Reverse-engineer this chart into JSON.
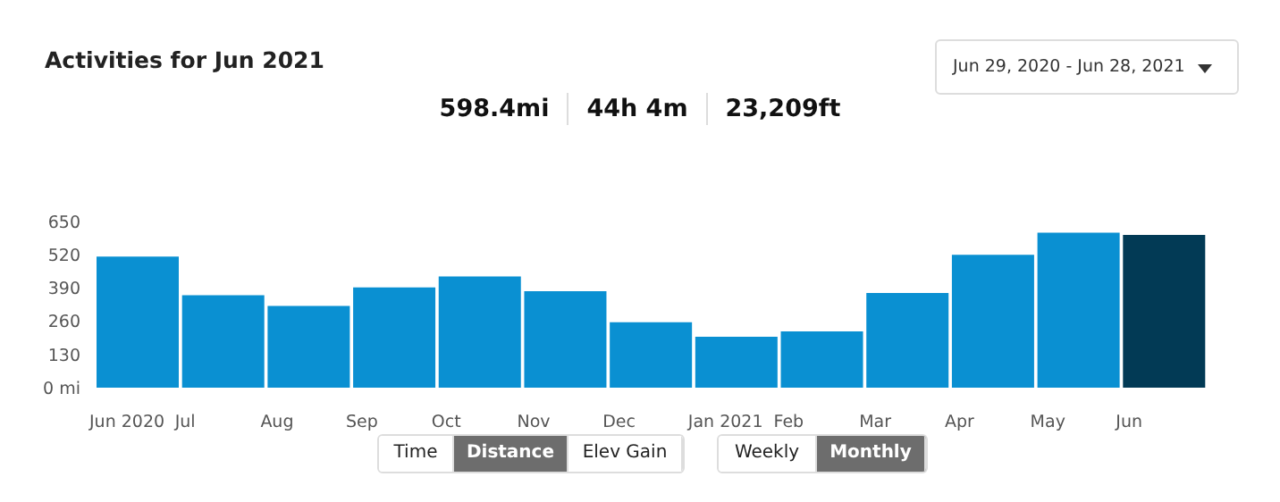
{
  "chart_data": {
    "type": "bar",
    "title": "Activities for Jun 2021",
    "categories": [
      "Jun 2020",
      "Jul",
      "Aug",
      "Sep",
      "Oct",
      "Nov",
      "Dec",
      "Jan 2021",
      "Feb",
      "Mar",
      "Apr",
      "May",
      "Jun"
    ],
    "values": [
      513,
      362,
      320,
      392,
      435,
      377,
      256,
      199,
      220,
      370,
      520,
      606,
      598
    ],
    "colors": [
      "#0a90d2",
      "#0a90d2",
      "#0a90d2",
      "#0a90d2",
      "#0a90d2",
      "#0a90d2",
      "#0a90d2",
      "#0a90d2",
      "#0a90d2",
      "#0a90d2",
      "#0a90d2",
      "#0a90d2",
      "#023a55"
    ],
    "ylim": [
      0,
      650
    ],
    "yticks": [
      {
        "value": 0,
        "label": "0 mi"
      },
      130,
      260,
      390,
      520,
      650
    ],
    "grid": false,
    "legend": false,
    "annotations": [
      "598.4mi",
      "44h 4m",
      "23,209ft",
      "Jun 29, 2020 - Jun 28, 2021",
      "Time",
      "Distance",
      "Elev Gain",
      "Weekly",
      "Monthly"
    ]
  }
}
